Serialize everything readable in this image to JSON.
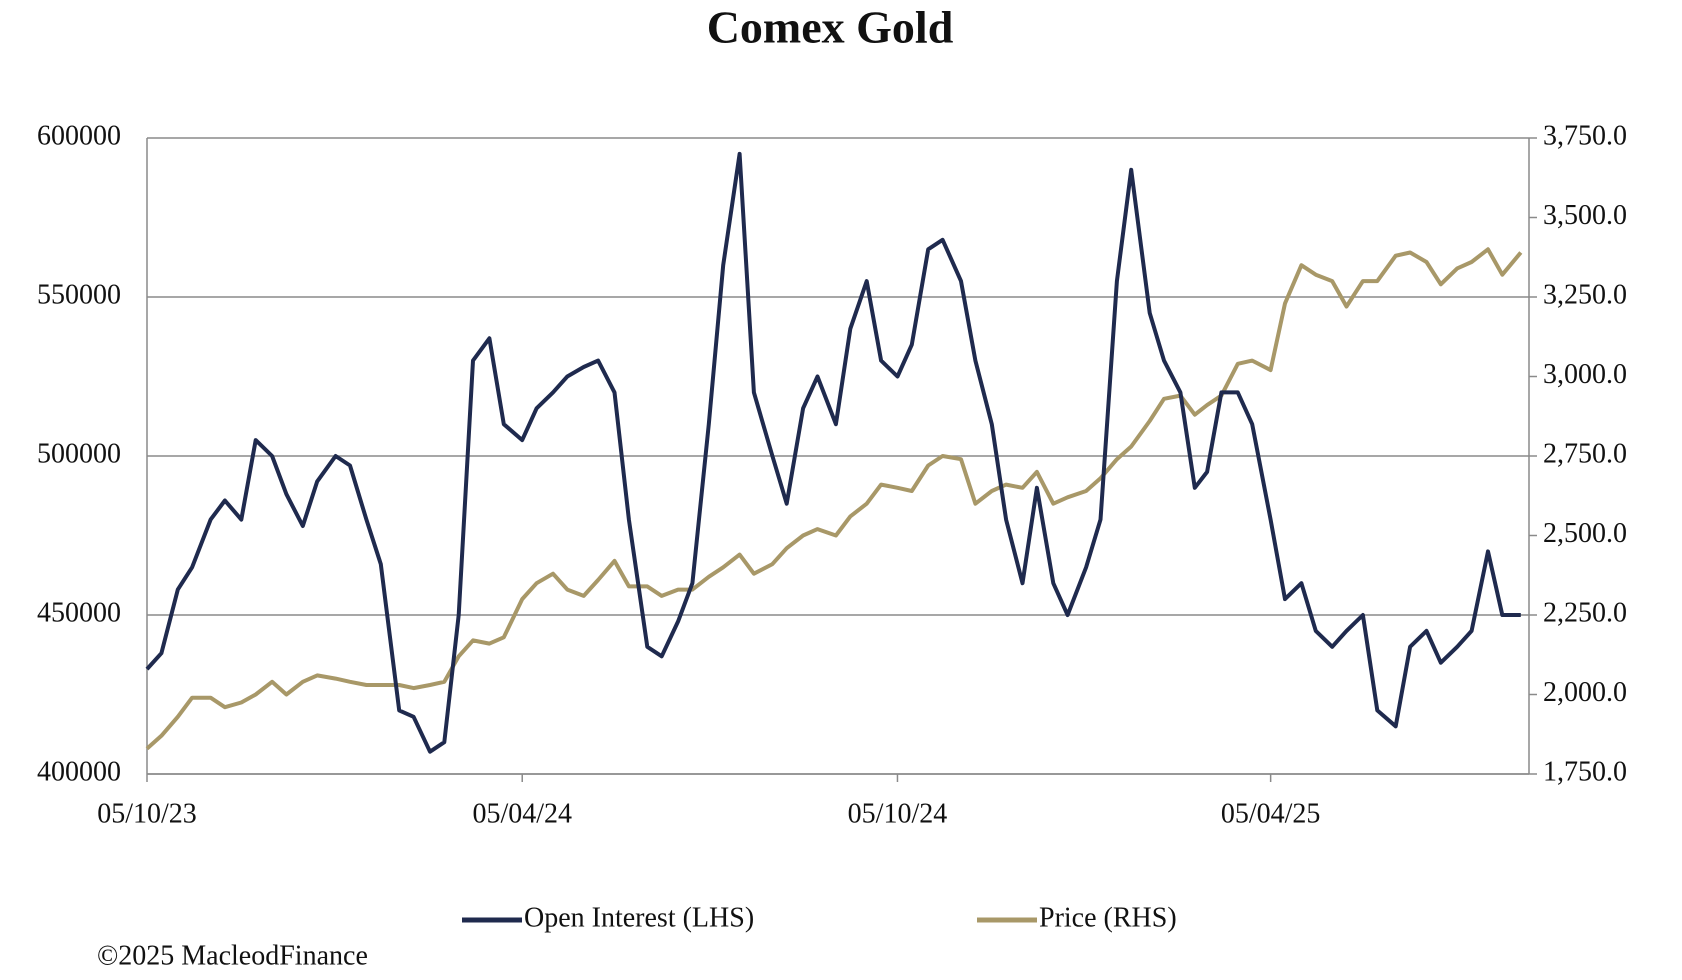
{
  "chart_data": {
    "type": "line",
    "title": "Comex Gold",
    "footer": "©2025 MacleodFinance",
    "x": [
      "05/10/23",
      "12/10/23",
      "20/10/23",
      "27/10/23",
      "05/11/23",
      "12/11/23",
      "20/11/23",
      "27/11/23",
      "05/12/23",
      "12/12/23",
      "20/12/23",
      "27/12/23",
      "05/01/24",
      "12/01/24",
      "20/01/24",
      "27/01/24",
      "05/02/24",
      "12/02/24",
      "20/02/24",
      "27/02/24",
      "05/03/24",
      "12/03/24",
      "20/03/24",
      "27/03/24",
      "05/04/24",
      "12/04/24",
      "20/04/24",
      "27/04/24",
      "05/05/24",
      "12/05/24",
      "20/05/24",
      "27/05/24",
      "05/06/24",
      "12/06/24",
      "20/06/24",
      "27/06/24",
      "05/07/24",
      "12/07/24",
      "20/07/24",
      "27/07/24",
      "05/08/24",
      "12/08/24",
      "20/08/24",
      "27/08/24",
      "05/09/24",
      "12/09/24",
      "20/09/24",
      "27/09/24",
      "05/10/24",
      "12/10/24",
      "20/10/24",
      "27/10/24",
      "05/11/24",
      "12/11/24",
      "20/11/24",
      "27/11/24",
      "05/12/24",
      "12/12/24",
      "20/12/24",
      "27/12/24",
      "05/01/25",
      "12/01/25",
      "20/01/25",
      "27/01/25",
      "05/02/25",
      "12/02/25",
      "20/02/25",
      "27/02/25",
      "05/03/25",
      "12/03/25",
      "20/03/25",
      "27/03/25",
      "05/04/25",
      "12/04/25",
      "20/04/25",
      "27/04/25",
      "05/05/25",
      "12/05/25",
      "20/05/25",
      "27/05/25",
      "05/06/25",
      "12/06/25",
      "20/06/25",
      "27/06/25",
      "05/07/25",
      "12/07/25",
      "20/07/25",
      "27/07/25",
      "05/08/25"
    ],
    "xlim": [
      "05/10/23",
      "09/08/25"
    ],
    "xticks": [
      "05/10/23",
      "05/04/24",
      "05/10/24",
      "05/04/25"
    ],
    "ylim": [
      400000,
      600000
    ],
    "yticks": [
      400000,
      450000,
      500000,
      550000,
      600000
    ],
    "y2lim": [
      1750,
      3750
    ],
    "y2ticks": [
      {
        "value": 1750,
        "label": "1,750.0"
      },
      {
        "value": 2000,
        "label": "2,000.0"
      },
      {
        "value": 2250,
        "label": "2,250.0"
      },
      {
        "value": 2500,
        "label": "2,500.0"
      },
      {
        "value": 2750,
        "label": "2,750.0"
      },
      {
        "value": 3000,
        "label": "3,000.0"
      },
      {
        "value": 3250,
        "label": "3,250.0"
      },
      {
        "value": 3500,
        "label": "3,500.0"
      },
      {
        "value": 3750,
        "label": "3,750.0"
      }
    ],
    "grid": true,
    "series": [
      {
        "name": "Open Interest (LHS)",
        "color": "#1f2a4e",
        "axis": "y",
        "values": [
          433000,
          438000,
          458000,
          465000,
          480000,
          486000,
          480000,
          505000,
          500000,
          488000,
          478000,
          492000,
          500000,
          497000,
          480000,
          466000,
          420000,
          418000,
          407000,
          410000,
          450000,
          530000,
          537000,
          510000,
          505000,
          515000,
          520000,
          525000,
          528000,
          530000,
          520000,
          480000,
          440000,
          437000,
          448000,
          460000,
          510000,
          560000,
          595000,
          520000,
          500000,
          485000,
          515000,
          525000,
          510000,
          540000,
          555000,
          530000,
          525000,
          535000,
          565000,
          568000,
          555000,
          530000,
          510000,
          480000,
          460000,
          490000,
          460000,
          450000,
          465000,
          480000,
          555000,
          590000,
          545000,
          530000,
          520000,
          490000,
          495000,
          520000,
          520000,
          510000,
          480000,
          455000,
          460000,
          445000,
          440000,
          445000,
          450000,
          420000,
          415000,
          440000,
          445000,
          435000,
          440000,
          445000,
          470000,
          450000,
          450000
        ]
      },
      {
        "name": "Price (RHS)",
        "color": "#a89868",
        "axis": "y2",
        "values": [
          1830,
          1870,
          1930,
          1990,
          1990,
          1960,
          1975,
          2000,
          2040,
          2000,
          2040,
          2060,
          2050,
          2040,
          2030,
          2030,
          2030,
          2020,
          2030,
          2040,
          2120,
          2170,
          2160,
          2180,
          2300,
          2350,
          2380,
          2330,
          2310,
          2360,
          2420,
          2340,
          2340,
          2310,
          2330,
          2330,
          2370,
          2400,
          2440,
          2380,
          2410,
          2460,
          2500,
          2520,
          2500,
          2560,
          2600,
          2660,
          2650,
          2640,
          2720,
          2750,
          2740,
          2600,
          2640,
          2660,
          2650,
          2700,
          2600,
          2620,
          2640,
          2680,
          2740,
          2780,
          2860,
          2930,
          2940,
          2880,
          2910,
          2940,
          3040,
          3050,
          3020,
          3230,
          3350,
          3320,
          3300,
          3220,
          3300,
          3300,
          3380,
          3390,
          3360,
          3290,
          3340,
          3360,
          3400,
          3320,
          3390
        ]
      }
    ]
  }
}
